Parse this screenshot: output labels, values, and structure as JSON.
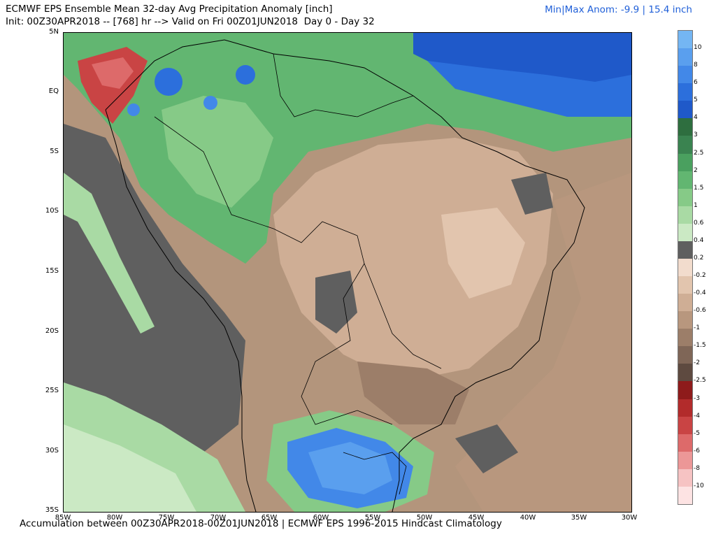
{
  "header": {
    "title": "ECMWF EPS Ensemble Mean 32-day Avg Precipitation Anomaly [inch]",
    "init": "Init: 00Z30APR2018 -- [768] hr --> Valid on Fri 00Z01JUN2018  Day 0 - Day 32",
    "minmax": "Min|Max Anom: -9.9 | 15.4 inch"
  },
  "footer": {
    "text": "Accumulation between 00Z30APR2018-00Z01JUN2018 | ECMWF EPS 1996-2015 Hindcast Climatology"
  },
  "map": {
    "lat_labels": [
      "5N",
      "EQ",
      "5S",
      "10S",
      "15S",
      "20S",
      "25S",
      "30S",
      "35S"
    ],
    "lon_labels": [
      "85W",
      "80W",
      "75W",
      "70W",
      "65W",
      "60W",
      "55W",
      "50W",
      "45W",
      "40W",
      "35W",
      "30W"
    ]
  },
  "legend": {
    "levels": [
      {
        "label": "10",
        "color": "#74b6f3"
      },
      {
        "label": "8",
        "color": "#5a9fee"
      },
      {
        "label": "6",
        "color": "#4288e8"
      },
      {
        "label": "5",
        "color": "#2c6fdc"
      },
      {
        "label": "4",
        "color": "#1f59c9"
      },
      {
        "label": "3",
        "color": "#2e6e3f"
      },
      {
        "label": "2.5",
        "color": "#3a8350"
      },
      {
        "label": "2",
        "color": "#4aa05f"
      },
      {
        "label": "1.5",
        "color": "#62b671"
      },
      {
        "label": "1",
        "color": "#86ca87"
      },
      {
        "label": "0.6",
        "color": "#a9daa4"
      },
      {
        "label": "0.4",
        "color": "#cbe9c4"
      },
      {
        "label": "0.2",
        "color": "#5f5f5f"
      },
      {
        "label": "-0.2",
        "color": "#f2dccd"
      },
      {
        "label": "-0.4",
        "color": "#e2c5ae"
      },
      {
        "label": "-0.6",
        "color": "#cfae95"
      },
      {
        "label": "-1",
        "color": "#b8977e"
      },
      {
        "label": "-1.5",
        "color": "#9c7e69"
      },
      {
        "label": "-2",
        "color": "#7f6657"
      },
      {
        "label": "-2.5",
        "color": "#5e4a40"
      },
      {
        "label": "-3",
        "color": "#8e1b1b"
      },
      {
        "label": "-4",
        "color": "#b22b2b"
      },
      {
        "label": "-5",
        "color": "#c94444"
      },
      {
        "label": "-6",
        "color": "#dd6a6a"
      },
      {
        "label": "-8",
        "color": "#ec9797"
      },
      {
        "label": "-10",
        "color": "#f6c3c3"
      },
      {
        "label": "",
        "color": "#fde3e3"
      }
    ]
  }
}
